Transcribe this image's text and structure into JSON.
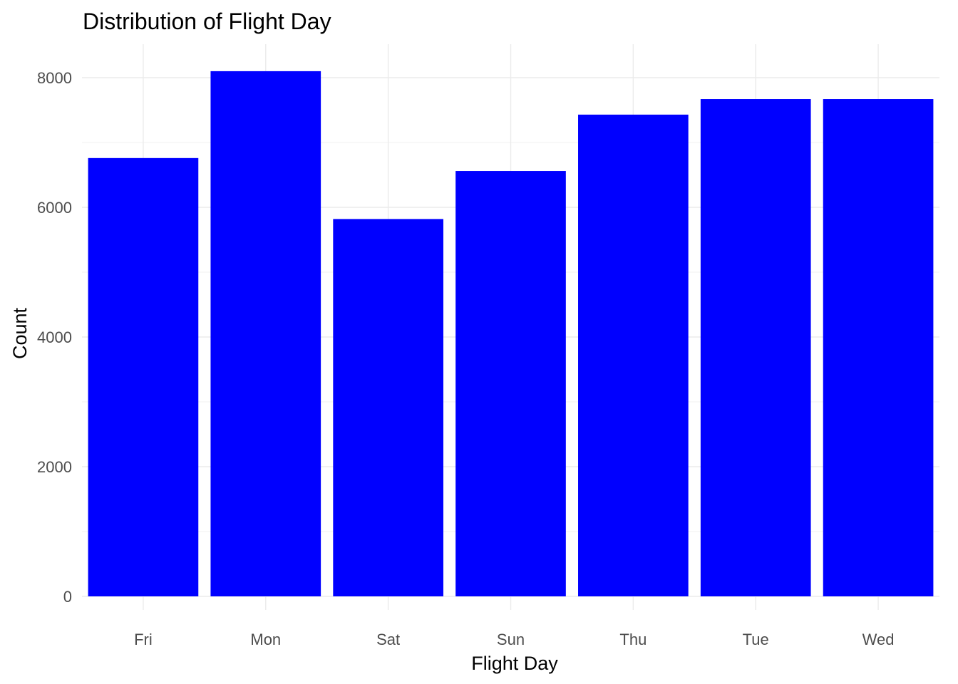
{
  "chart_data": {
    "type": "bar",
    "title": "Distribution of Flight Day",
    "xlabel": "Flight Day",
    "ylabel": "Count",
    "categories": [
      "Fri",
      "Mon",
      "Sat",
      "Sun",
      "Thu",
      "Tue",
      "Wed"
    ],
    "values": [
      6760,
      8100,
      5820,
      6560,
      7430,
      7670,
      7670
    ],
    "ylim": [
      0,
      8500
    ],
    "yticks": [
      0,
      2000,
      4000,
      6000,
      8000
    ],
    "ytick_labels": [
      "0",
      "2000",
      "4000",
      "6000",
      "8000"
    ],
    "grid": true,
    "bar_color": "#0000ff",
    "background_color": "#ffffff",
    "legend": "none"
  }
}
